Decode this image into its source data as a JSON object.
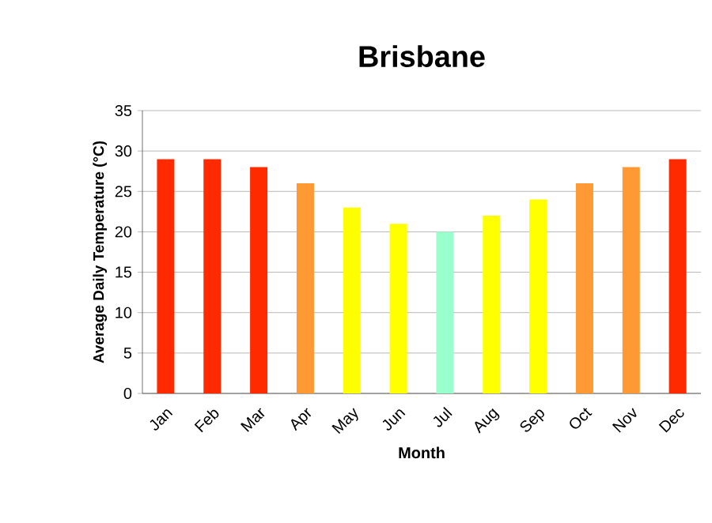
{
  "chart_data": {
    "type": "bar",
    "title": "Brisbane",
    "xlabel": "Month",
    "ylabel": "Average Daily Temperature (°C)",
    "categories": [
      "Jan",
      "Feb",
      "Mar",
      "Apr",
      "May",
      "Jun",
      "Jul",
      "Aug",
      "Sep",
      "Oct",
      "Nov",
      "Dec"
    ],
    "values": [
      29,
      29,
      28,
      26,
      23,
      21,
      20,
      22,
      24,
      26,
      28,
      29
    ],
    "colors": [
      "#ff2a00",
      "#ff2a00",
      "#ff2a00",
      "#ff9933",
      "#ffff00",
      "#ffff00",
      "#99ffcc",
      "#ffff00",
      "#ffff00",
      "#ff9933",
      "#ff9933",
      "#ff2a00"
    ],
    "ylim": [
      0,
      35
    ],
    "yticks": [
      0,
      5,
      10,
      15,
      20,
      25,
      30,
      35
    ],
    "grid": "y"
  }
}
